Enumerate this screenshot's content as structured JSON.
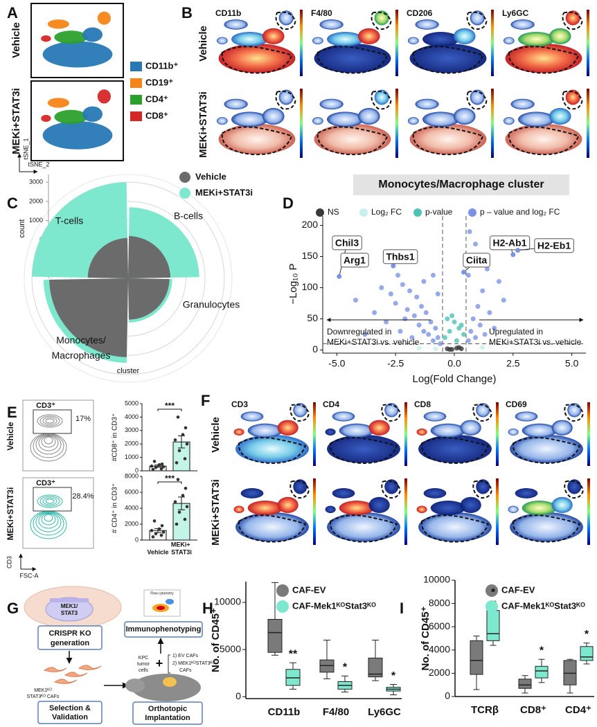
{
  "panels": {
    "A": {
      "label": "A",
      "rows": [
        "Vehicle",
        "MEKi+STAT3i"
      ],
      "legend": [
        {
          "name": "CD11b⁺",
          "color": "#2878b5"
        },
        {
          "name": "CD19⁺",
          "color": "#f58518"
        },
        {
          "name": "CD4⁺",
          "color": "#2ca02c"
        },
        {
          "name": "CD8⁺",
          "color": "#d62728"
        }
      ],
      "axes": [
        "tSNE_1",
        "tSNE_2"
      ]
    },
    "B": {
      "label": "B",
      "rows": [
        "Vehicle",
        "MEKi+STAT3i"
      ],
      "columns": [
        "CD11b",
        "F4/80",
        "CD206",
        "Ly6GC"
      ]
    },
    "C": {
      "label": "C"
    },
    "D": {
      "label": "D"
    },
    "E": {
      "label": "E",
      "rows": [
        "Vehicle",
        "MEKi+STAT3i"
      ],
      "gates": [
        "CD3⁺",
        "CD3⁺"
      ],
      "percents": [
        "17%",
        "28.4%"
      ],
      "axes": [
        "CD3",
        "FSC-A"
      ]
    },
    "F": {
      "label": "F",
      "rows": [
        "Vehicle",
        "MEKi+STAT3i"
      ],
      "columns": [
        "CD3",
        "CD4",
        "CD8",
        "CD69"
      ]
    },
    "G": {
      "label": "G",
      "construct": [
        "MEK1/",
        "STAT3"
      ],
      "crispr": [
        "CRISPR KO",
        "generation"
      ],
      "immuno": "Immunophenotyping",
      "flow": "Flow cytometry",
      "cafs": [
        "MEK1ᴷᴼ",
        "STAT3ᴷᴼ CAFs"
      ],
      "selection": [
        "Selection &",
        "Validation"
      ],
      "kpc": [
        "KPC",
        "tumor",
        "cells"
      ],
      "plus": "+",
      "options": [
        "1) EV CAFs",
        "2) MEK1ᴷᴼSTAT3ᴷᴼ",
        "CAFs"
      ],
      "implant": [
        "Orthotopic",
        "Implantation"
      ]
    },
    "H": {
      "label": "H"
    },
    "I": {
      "label": "I"
    }
  },
  "chart_data": [
    {
      "type": "polar_bar",
      "xlabel": "cluster",
      "ylabel": "count",
      "categories": [
        "T-cells",
        "B-cells",
        "Granulocytes",
        "Monocytes/Macrophages"
      ],
      "series": [
        {
          "name": "Vehicle",
          "color": "#6b6b6b",
          "values": [
            100,
            200,
            150,
            2100
          ]
        },
        {
          "name": "MEKi+STAT3i",
          "color": "#7ee8cf",
          "values": [
            3000,
            1700,
            300,
            2400
          ]
        }
      ],
      "ylim": [
        -2000,
        3400
      ],
      "yticks": [
        0,
        1000,
        2000,
        3000
      ],
      "grid": true
    },
    {
      "type": "volcano",
      "title": "Monocytes/Macrophage cluster",
      "xlabel": "Log(Fold Change)",
      "ylabel": "−Log₁₀ P",
      "series": [
        {
          "name": "NS",
          "color": "#3a3a3a",
          "x": [
            -0.3,
            -0.1,
            0.1,
            0.3,
            0.2,
            -0.2
          ],
          "y": [
            2,
            1,
            3,
            2,
            4,
            1
          ]
        },
        {
          "name": "Log₂ FC",
          "color": "#c9eeee",
          "x": [
            -1.5,
            1.2,
            -0.8
          ],
          "y": [
            3,
            4,
            2
          ]
        },
        {
          "name": "p-value",
          "color": "#4fc1b5",
          "x": [
            -0.4,
            -0.2,
            0,
            0.2,
            0.4,
            -0.3,
            0.3,
            0.1,
            -0.1
          ],
          "y": [
            20,
            30,
            45,
            35,
            25,
            50,
            40,
            15,
            55
          ]
        },
        {
          "name": "p – value and log₂ FC",
          "color": "#7b93e6",
          "x": [
            -0.6,
            -0.7,
            -0.8,
            -0.9,
            -1,
            -1.1,
            -1.2,
            -1.3,
            -1.4,
            -1.5,
            -1.6,
            -1.7,
            -1.8,
            -1.9,
            -2,
            -2.1,
            -2.2,
            -2.3,
            -2.5,
            -2.7,
            -2.9,
            -3.1,
            -3.4,
            -3.8,
            -4.2,
            -0.7,
            -0.9,
            -1.3,
            -2.4,
            0.6,
            0.7,
            0.8,
            0.9,
            1,
            1.1,
            1.2,
            1.3,
            1.5,
            1.7,
            1.9,
            2.1,
            0.6,
            0.7,
            0.9,
            0.65,
            1.4
          ],
          "y": [
            10,
            20,
            35,
            15,
            45,
            25,
            60,
            30,
            70,
            40,
            85,
            55,
            20,
            95,
            65,
            50,
            105,
            30,
            75,
            90,
            45,
            100,
            60,
            25,
            80,
            90,
            120,
            110,
            120,
            15,
            30,
            50,
            20,
            70,
            40,
            95,
            25,
            60,
            35,
            110,
            80,
            120,
            145,
            170,
            190,
            130
          ]
        }
      ],
      "gene_labels": [
        {
          "text": "Chil3",
          "x": -4.9,
          "y": 118
        },
        {
          "text": "Arg1",
          "x": -4.0,
          "y": 136
        },
        {
          "text": "Thbs1",
          "x": -2.6,
          "y": 135
        },
        {
          "text": "Ciita",
          "x": 0.4,
          "y": 125
        },
        {
          "text": "H2-Ab1",
          "x": 2.5,
          "y": 153
        },
        {
          "text": "H2-Eb1",
          "x": 2.7,
          "y": 160
        }
      ],
      "annotations": [
        "Downregulated in",
        "MEKi+STAT3i vs. vehicle",
        "Upregulated in",
        "MEKi+STAT3i vs. vehicle"
      ],
      "xlim": [
        -5.6,
        5.6
      ],
      "ylim": [
        -5,
        215
      ],
      "xticks": [
        {
          "value": -5,
          "label": "-5.0"
        },
        -2.5,
        {
          "value": 0,
          "label": "0.0"
        },
        2.5,
        {
          "value": 5,
          "label": "5.0"
        }
      ],
      "yticks": [
        0,
        50,
        100,
        150,
        200
      ],
      "fc_cutoff": [
        -0.5,
        0.5
      ],
      "p_cutoff": 10
    },
    {
      "type": "bar_dot",
      "ylabel": "#CD8⁺ in CD3⁺",
      "categories": [
        null,
        null
      ],
      "values": [
        350,
        2150
      ],
      "errors": [
        80,
        450
      ],
      "points": [
        [
          100,
          150,
          250,
          300,
          350,
          450,
          500,
          700
        ],
        [
          600,
          900,
          1500,
          2000,
          2300,
          2700,
          3200,
          4000
        ]
      ],
      "bar_colors": [
        "#f4f4f4",
        "#c4f3e7"
      ],
      "point_color": "#333333",
      "ylim": [
        0,
        5000
      ],
      "yticks": [
        0,
        1000,
        2000,
        3000,
        4000,
        5000
      ],
      "annotation": "***",
      "annotation_color": "#e53935"
    },
    {
      "type": "bar_dot",
      "ylabel": "# CD4⁺ in CD3⁺",
      "categories": [
        "Vehicle",
        "MEKi+ STAT3i"
      ],
      "values": [
        1200,
        4600
      ],
      "errors": [
        250,
        800
      ],
      "points": [
        [
          400,
          600,
          800,
          1000,
          1200,
          1400,
          1800,
          2400
        ],
        [
          2000,
          2600,
          3500,
          4200,
          4800,
          5600,
          6500,
          7600
        ]
      ],
      "bar_colors": [
        "#f4f4f4",
        "#c4f3e7"
      ],
      "point_color": "#333333",
      "ylim": [
        0,
        8000
      ],
      "yticks": [
        0,
        2000,
        4000,
        6000,
        8000
      ],
      "annotation": "***",
      "annotation_color": "#e53935"
    },
    {
      "type": "box",
      "ylabel": "No. of CD45⁺",
      "categories": [
        "CD11b",
        "F4/80",
        "Ly6GC"
      ],
      "series": [
        {
          "name": "CAF-EV",
          "color": "#7a7a7a",
          "min": [
            4400,
            1900,
            1700
          ],
          "q1": [
            4700,
            2600,
            2100
          ],
          "median": [
            6800,
            3300,
            2400
          ],
          "q3": [
            8200,
            3900,
            4100
          ],
          "max": [
            12100,
            6000,
            6000
          ]
        },
        {
          "name": "CAF-Mek1ᴷᴼStat3ᴷᴼ",
          "color": "#7ee8cf",
          "min": [
            800,
            500,
            200
          ],
          "q1": [
            1200,
            800,
            600
          ],
          "median": [
            2000,
            1200,
            800
          ],
          "q3": [
            2900,
            1600,
            1000
          ],
          "max": [
            3600,
            2200,
            1300
          ]
        }
      ],
      "ylim": [
        -200,
        12200
      ],
      "yticks": [
        0,
        5000,
        10000
      ],
      "annotations": [
        "**",
        "*",
        "*"
      ],
      "annotation_color": "#e53935"
    },
    {
      "type": "box",
      "ylabel": "No. of CD45⁺",
      "categories": [
        "TCRβ",
        "CD8⁺",
        "CD4⁺"
      ],
      "series": [
        {
          "name": "CAF-EV",
          "color": "#7a7a7a",
          "min": [
            600,
            300,
            300
          ],
          "q1": [
            1900,
            700,
            1000
          ],
          "median": [
            3100,
            1000,
            2000
          ],
          "q3": [
            4800,
            1500,
            3100
          ],
          "max": [
            5200,
            1800,
            3200
          ]
        },
        {
          "name": "CAF-Mek1ᴷᴼStat3ᴷᴼ",
          "color": "#7ee8cf",
          "min": [
            4400,
            1200,
            2800
          ],
          "q1": [
            4800,
            1600,
            3100
          ],
          "median": [
            5400,
            2200,
            3400
          ],
          "q3": [
            7400,
            2600,
            4300
          ],
          "max": [
            8200,
            3200,
            4600
          ]
        }
      ],
      "ylim": [
        0,
        10000
      ],
      "yticks": [
        0,
        2000,
        4000,
        6000,
        8000,
        10000
      ],
      "annotations": [
        "*",
        "*",
        "*"
      ],
      "annotation_color": "#e53935"
    }
  ]
}
